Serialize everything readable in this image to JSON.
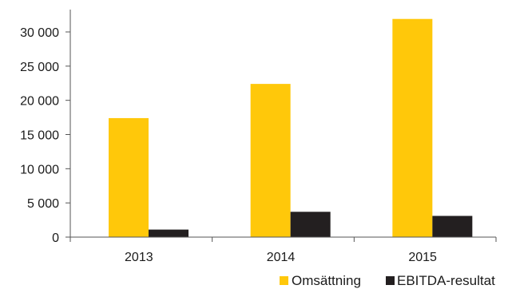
{
  "chart_data": {
    "type": "bar",
    "categories": [
      "2013",
      "2014",
      "2015"
    ],
    "series": [
      {
        "name": "Omsättning",
        "color": "#FFC80A",
        "values": [
          17400,
          22400,
          31900
        ]
      },
      {
        "name": "EBITDA-resultat",
        "color": "#231F20",
        "values": [
          1100,
          3700,
          3100
        ]
      }
    ],
    "ylim": [
      0,
      35000
    ],
    "yticks": [
      0,
      5000,
      10000,
      15000,
      20000,
      25000,
      30000
    ],
    "ytick_labels": [
      "0",
      "5 000",
      "10 000",
      "15 000",
      "20 000",
      "25 000",
      "30 000"
    ],
    "grid": false,
    "legend": "bottom-right"
  }
}
